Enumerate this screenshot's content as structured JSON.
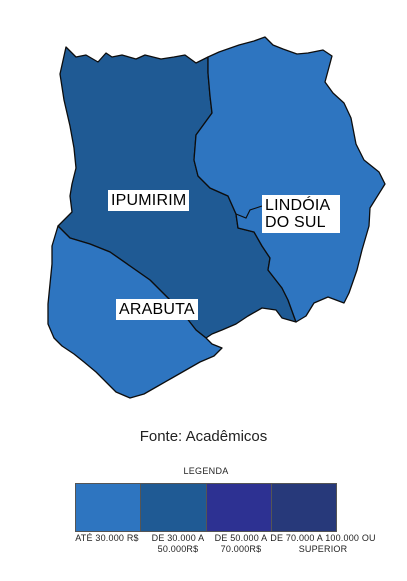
{
  "regions": [
    {
      "name": "IPUMIRIM",
      "color": "#1f5a94"
    },
    {
      "name": "LINDÓIA DO SUL",
      "color": "#2e75c0"
    },
    {
      "name": "ARABUTA",
      "color": "#2e75c0"
    }
  ],
  "source": "Fonte: Acadêmicos",
  "legend": {
    "title": "LEGENDA",
    "items": [
      {
        "label": "ATÉ 30.000 R$",
        "color": "#2e75c0"
      },
      {
        "label": "DE 30.000 A 50.000R$",
        "color": "#1f5a94"
      },
      {
        "label": "DE 50.000 A 70.000R$",
        "color": "#2d3192"
      },
      {
        "label": "DE 70.000 A 100.000 OU SUPERIOR",
        "color": "#27397a"
      }
    ]
  }
}
